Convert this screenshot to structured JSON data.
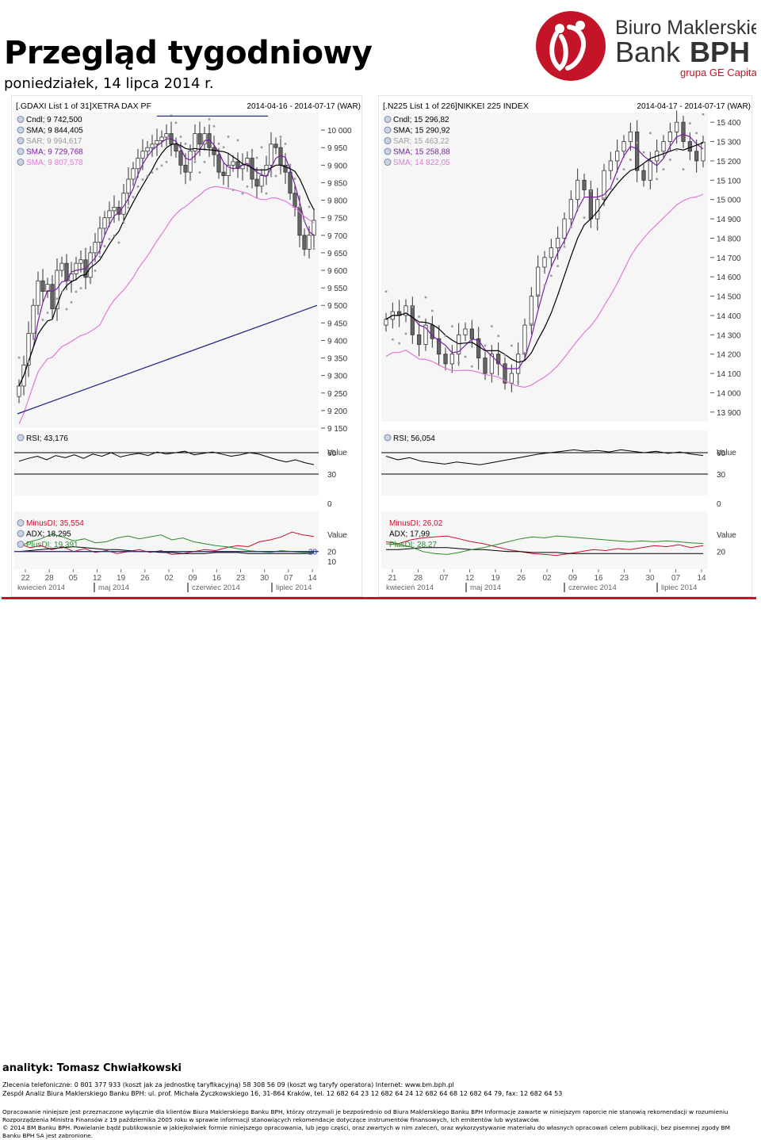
{
  "header": {
    "title": "Przegląd tygodniowy",
    "date": "poniedziałek, 14 lipca 2014 r."
  },
  "logo": {
    "line1": "Biuro Maklerskie",
    "line2a": "Bank",
    "line2b": "BPH",
    "line3": "grupa GE Capital",
    "color": "#c41427"
  },
  "charts": [
    {
      "id": "dax",
      "title": "[.GDAXI List 1 of 31]XETRA DAX PF",
      "range": "2014-04-16 - 2014-07-17 (WAR)",
      "legend": [
        {
          "label": "Cndl; 9 742,500",
          "color": "#000000"
        },
        {
          "label": "SMA; 9 844,405",
          "color": "#000000"
        },
        {
          "label": "SAR; 9 994,617",
          "color": "#9a9a9a"
        },
        {
          "label": "SMA; 9 729,768",
          "color": "#7a1fa0"
        },
        {
          "label": "SMA; 9 807,578",
          "color": "#e07ad8"
        }
      ],
      "price_ticks": [
        "10 000",
        "9 950",
        "9 900",
        "9 850",
        "9 800",
        "9 750",
        "9 700",
        "9 650",
        "9 600",
        "9 550",
        "9 500",
        "9 450",
        "9 400",
        "9 350",
        "9 300",
        "9 250",
        "9 200",
        "9 150"
      ],
      "rsi_label": "RSI; 43,176",
      "rsi_ticks": [
        "Value",
        "60",
        "30",
        "0"
      ],
      "adx_legend": [
        {
          "label": "MinusDI; 35,554",
          "color": "#c8102e"
        },
        {
          "label": "ADX; 18,295",
          "color": "#000000"
        },
        {
          "label": "PlusDI; 19,391",
          "color": "#2e8b2e"
        }
      ],
      "adx_ticks": [
        "Value",
        "20",
        "10"
      ],
      "adx_marker": "20",
      "x_ticks": [
        "22",
        "28",
        "05",
        "12",
        "19",
        "26",
        "02",
        "09",
        "16",
        "23",
        "30",
        "07",
        "14"
      ],
      "months": [
        "kwiecień 2014",
        "maj 2014",
        "czerwiec 2014",
        "lipiec 2014"
      ]
    },
    {
      "id": "nikkei",
      "title": "[.N225 List 1 of 226]NIKKEI 225 INDEX",
      "range": "2014-04-17 - 2014-07-17 (WAR)",
      "legend": [
        {
          "label": "Cndl; 15 296,82",
          "color": "#000000"
        },
        {
          "label": "SMA; 15 290,92",
          "color": "#000000"
        },
        {
          "label": "SAR; 15 463,22",
          "color": "#9a9a9a"
        },
        {
          "label": "SMA; 15 258,88",
          "color": "#7a1fa0"
        },
        {
          "label": "SMA; 14 822,05",
          "color": "#e07ad8"
        }
      ],
      "price_ticks": [
        "15 400",
        "15 300",
        "15 200",
        "15 100",
        "15 000",
        "14 900",
        "14 800",
        "14 700",
        "14 600",
        "14 500",
        "14 400",
        "14 300",
        "14 200",
        "14 100",
        "14 000",
        "13 900"
      ],
      "rsi_label": "RSI; 56,054",
      "rsi_ticks": [
        "Value",
        "60",
        "30",
        "0"
      ],
      "adx_legend": [
        {
          "label": "MinusDI; 26,02",
          "color": "#c8102e"
        },
        {
          "label": "ADX; 17,99",
          "color": "#000000"
        },
        {
          "label": "PlusDI; 28,27",
          "color": "#2e8b2e"
        }
      ],
      "adx_ticks": [
        "Value",
        "20"
      ],
      "adx_marker": "",
      "x_ticks": [
        "21",
        "28",
        "07",
        "12",
        "19",
        "26",
        "02",
        "09",
        "16",
        "23",
        "30",
        "07",
        "14"
      ],
      "months": [
        "kwiecień 2014",
        "maj 2014",
        "czerwiec 2014",
        "lipiec 2014"
      ]
    }
  ],
  "chart_data": [
    {
      "type": "line",
      "title": "[.GDAXI List 1 of 31]XETRA DAX PF",
      "ylim": [
        9150,
        10050
      ],
      "series": [
        {
          "name": "Cndl",
          "values": [
            9270,
            9330,
            9420,
            9500,
            9570,
            9540,
            9560,
            9490,
            9600,
            9620,
            9570,
            9590,
            9620,
            9630,
            9580,
            9650,
            9680,
            9720,
            9750,
            9770,
            9780,
            9760,
            9820,
            9860,
            9890,
            9920,
            9940,
            9950,
            9960,
            9970,
            9980,
            9990,
            9960,
            9940,
            9900,
            9880,
            9940,
            9990,
            9960,
            9990,
            9950,
            9930,
            9880,
            9870,
            9900,
            9910,
            9890,
            9900,
            9920,
            9860,
            9840,
            9870,
            9900,
            9960,
            9950,
            9900,
            9880,
            9820,
            9780,
            9700,
            9660,
            9700,
            9742.5
          ]
        },
        {
          "name": "SMA",
          "values": [
            9844.405
          ]
        },
        {
          "name": "SAR",
          "values": [
            9994.617
          ]
        },
        {
          "name": "SMA",
          "values": [
            9729.768
          ]
        },
        {
          "name": "SMA",
          "values": [
            9807.578
          ]
        }
      ],
      "rsi": [
        48,
        52,
        55,
        50,
        56,
        53,
        57,
        52,
        58,
        55,
        60,
        54,
        57,
        59,
        56,
        61,
        58,
        60,
        62,
        57,
        59,
        61,
        58,
        55,
        57,
        60,
        58,
        54,
        50,
        47,
        50,
        46,
        43.176
      ],
      "minus_di": [
        28,
        24,
        26,
        22,
        25,
        20,
        23,
        19,
        21,
        18,
        20,
        22,
        19,
        21,
        17,
        18,
        20,
        22,
        21,
        24,
        26,
        25,
        30,
        32,
        35,
        40,
        37,
        35.554
      ],
      "adx": [
        20,
        21,
        22,
        23,
        24,
        25,
        24,
        23,
        22,
        22,
        21,
        20,
        20,
        19,
        19,
        18,
        18,
        18,
        19,
        19,
        19,
        18,
        18,
        18,
        18,
        18,
        18,
        18.295
      ],
      "plus_di": [
        25,
        30,
        33,
        38,
        35,
        31,
        33,
        29,
        30,
        34,
        36,
        33,
        35,
        37,
        32,
        34,
        30,
        28,
        26,
        25,
        23,
        21,
        20,
        19,
        21,
        20,
        19,
        19.391
      ]
    },
    {
      "type": "line",
      "title": "[.N225 List 1 of 226]NIKKEI 225 INDEX",
      "ylim": [
        13850,
        15450
      ],
      "series": [
        {
          "name": "Cndl",
          "values": [
            14380,
            14420,
            14400,
            14450,
            14300,
            14250,
            14350,
            14280,
            14200,
            14150,
            14200,
            14300,
            14330,
            14280,
            14180,
            14100,
            14200,
            14150,
            14050,
            14100,
            14200,
            14350,
            14500,
            14650,
            14700,
            14750,
            14800,
            14900,
            15000,
            15100,
            15050,
            14900,
            15000,
            15150,
            15200,
            15250,
            15300,
            15350,
            15150,
            15100,
            15200,
            15250,
            15300,
            15350,
            15400,
            15300,
            15250,
            15200,
            15296.82
          ]
        },
        {
          "name": "SMA",
          "values": [
            15290.92
          ]
        },
        {
          "name": "SAR",
          "values": [
            15463.22
          ]
        },
        {
          "name": "SMA",
          "values": [
            15258.88
          ]
        },
        {
          "name": "SMA",
          "values": [
            14822.05
          ]
        }
      ],
      "rsi": [
        55,
        50,
        53,
        48,
        46,
        44,
        47,
        45,
        43,
        46,
        49,
        52,
        55,
        58,
        60,
        62,
        64,
        62,
        63,
        61,
        64,
        62,
        60,
        62,
        59,
        61,
        58,
        56.054
      ],
      "minus_di": [
        30,
        28,
        32,
        34,
        35,
        36,
        33,
        30,
        28,
        25,
        22,
        20,
        18,
        17,
        16,
        18,
        20,
        22,
        21,
        23,
        22,
        24,
        26,
        25,
        27,
        24,
        26.02
      ],
      "adx": [
        22,
        22,
        23,
        24,
        24,
        24,
        23,
        22,
        22,
        21,
        20,
        20,
        19,
        19,
        19,
        18,
        18,
        18,
        18,
        18,
        18,
        18,
        18,
        18,
        18,
        18,
        17.99
      ],
      "plus_di": [
        28,
        27,
        25,
        20,
        18,
        17,
        19,
        22,
        24,
        27,
        30,
        33,
        35,
        34,
        36,
        35,
        34,
        33,
        32,
        31,
        30,
        31,
        30,
        31,
        30,
        29,
        28.27
      ]
    }
  ],
  "footer": {
    "analyst": "analityk: Tomasz Chwiałkowski",
    "line1": "Zlecenia telefoniczne: 0  801  377  933 (koszt jak za jednostkę taryfikacyjną)   58 308 56 09 (koszt wg taryfy operatora)   Internet: www.bm.bph.pl",
    "line2": "Zespół Analiz Biura Maklerskiego Banku BPH: ul. prof. Michała Życzkowskiego 16, 31-864 Kraków,  tel. 12 682 64 23   12 682 64 24   12  682 64 68   12 682 64 79,   fax: 12  682 64 53",
    "disclaimer1": "Opracowanie niniejsze jest przeznaczone wyłącznie dla klientów Biura Maklerskiego Banku BPH, którzy otrzymali je bezpośrednio od Biura Maklerskiego Banku BPH Informacje zawarte w niniejszym raporcie nie stanowią rekomendacji w rozumieniu",
    "disclaimer2": "Rozporządzenia Ministra Finansów z 19 października 2005 roku w sprawie informacji stanowiących rekomendacje dotyczące instrumentów finansowych, ich emitentów lub wystawców.",
    "disclaimer3": "© 2014 BM Banku BPH. Powielanie bądź publikowanie w jakiejkolwiek formie niniejszego opracowania, lub jego części, oraz zwartych w nim zaleceń, oraz wykorzystywanie materiału do własnych opracowań celem publikacji, bez pisemnej zgody BM",
    "disclaimer4": "Banku BPH SA jest zabronione."
  }
}
